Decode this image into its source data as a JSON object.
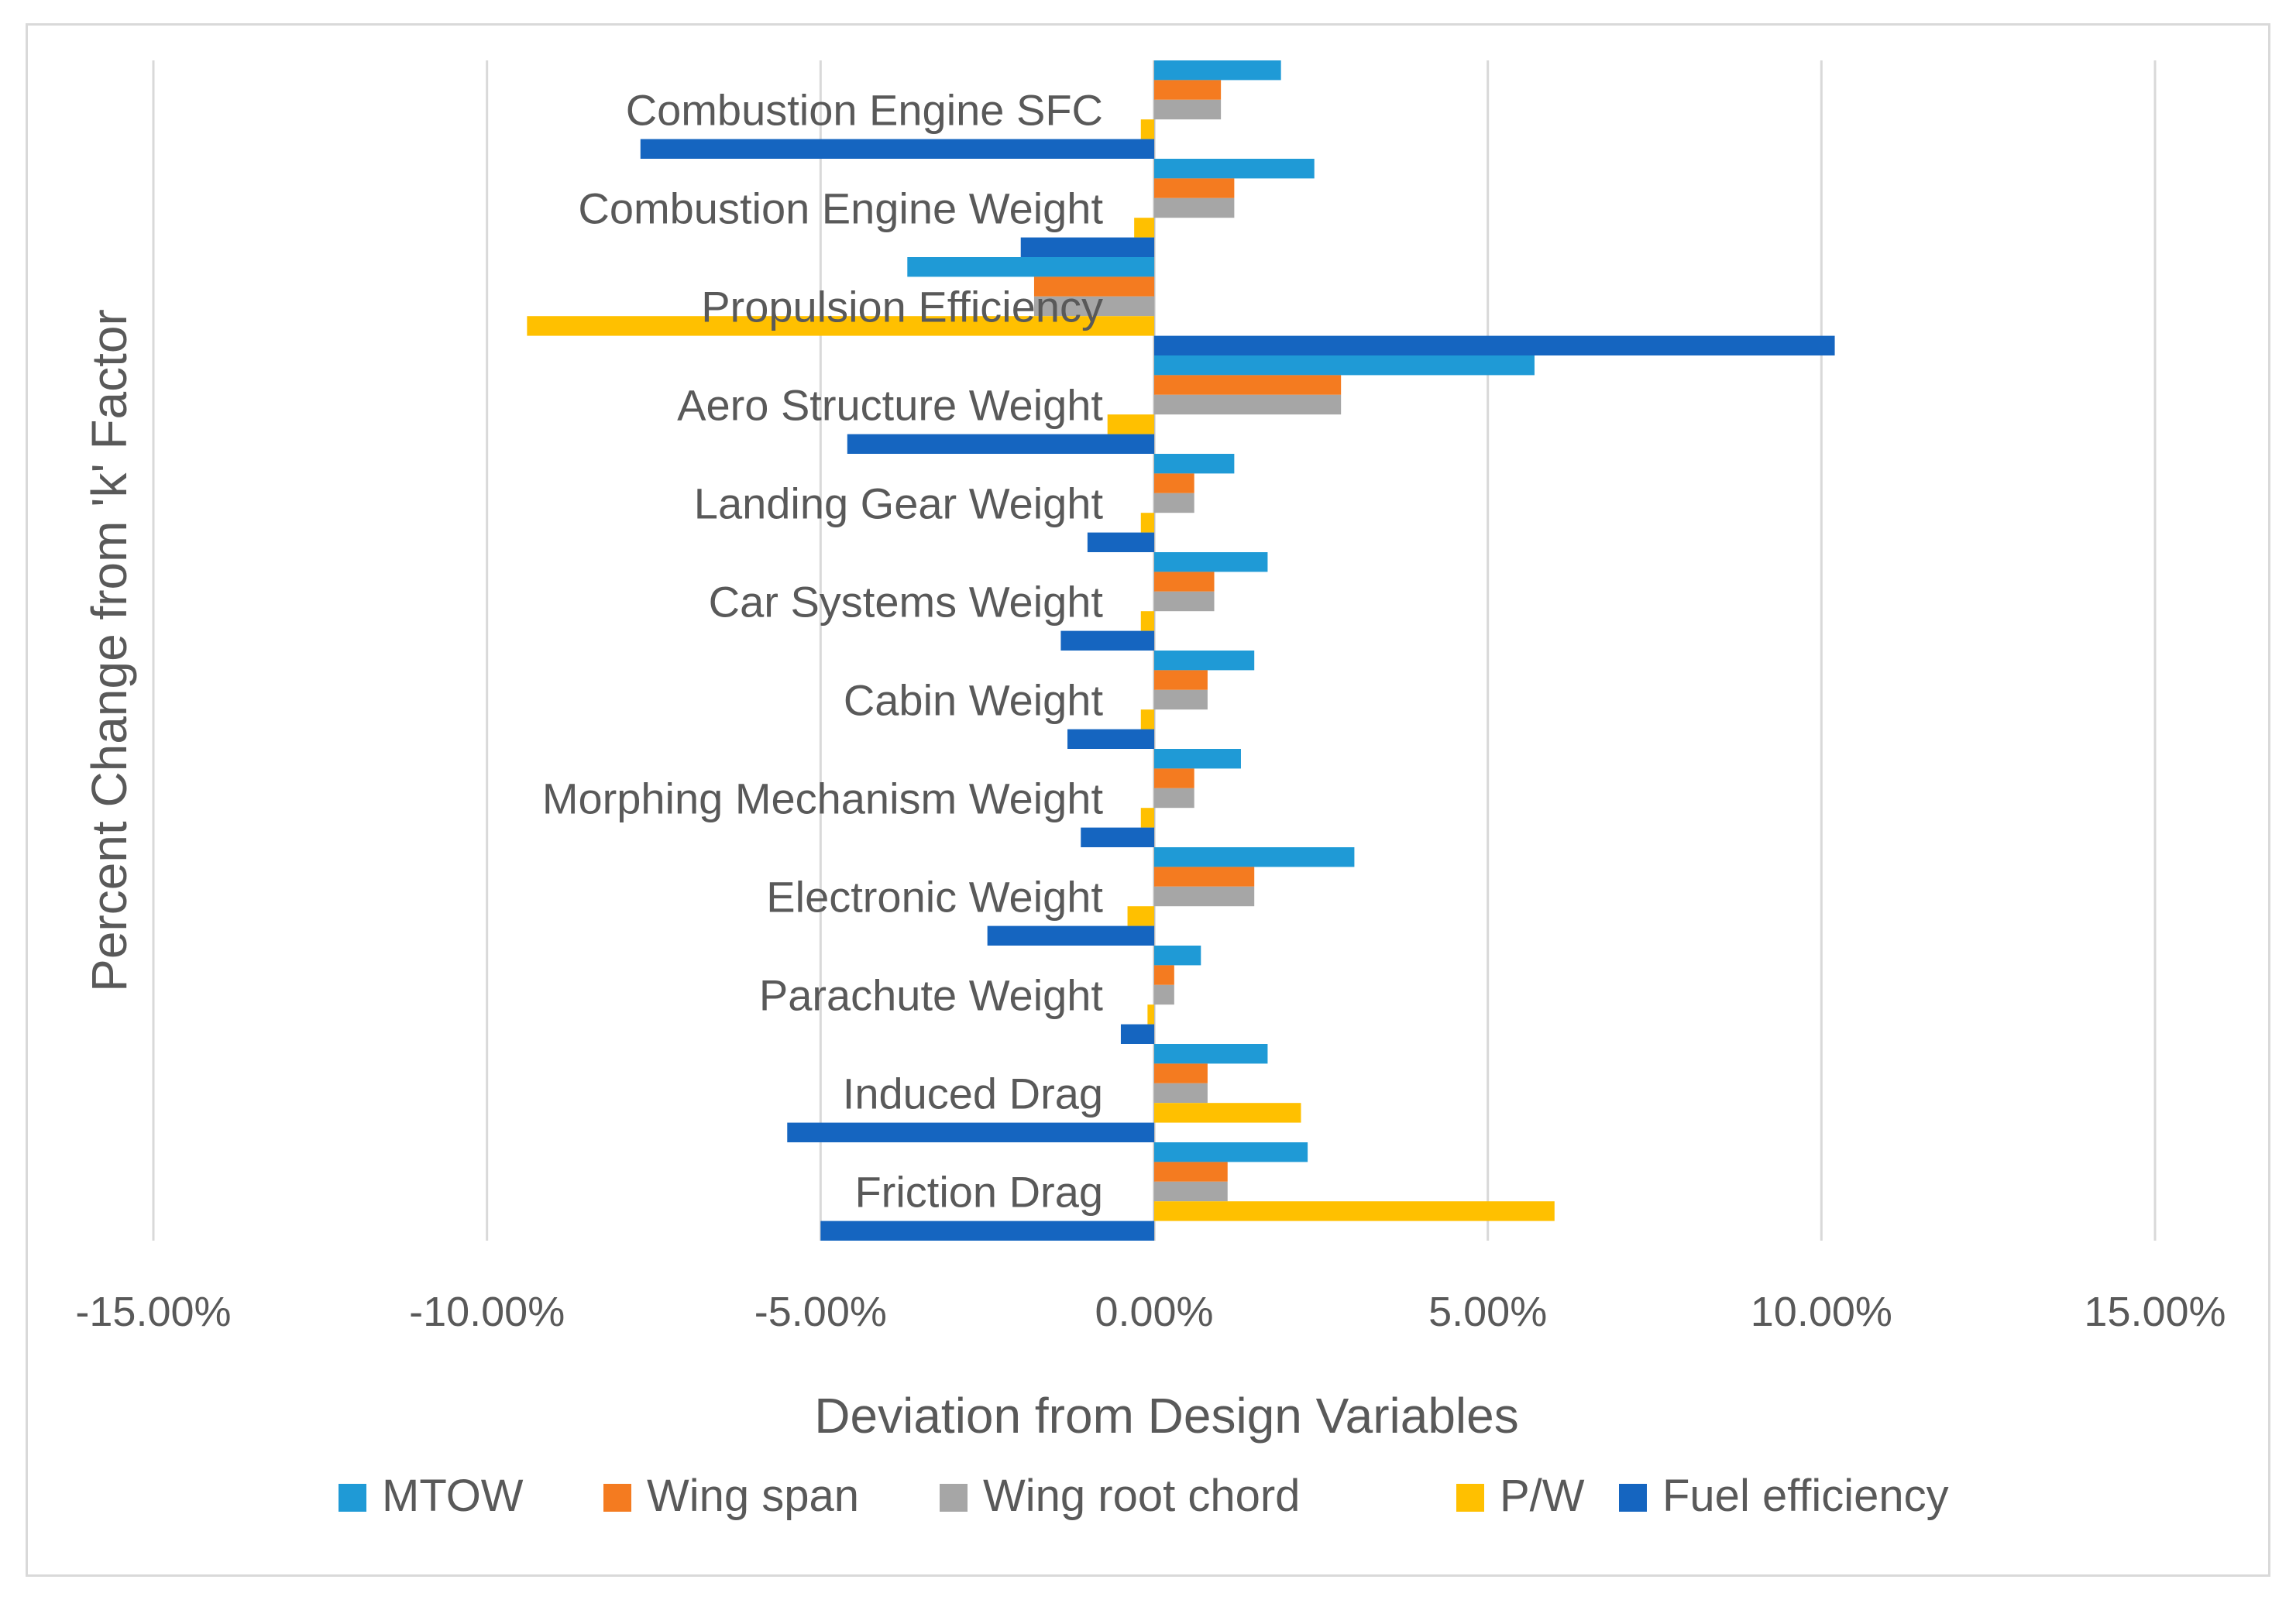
{
  "chart_data": {
    "type": "bar",
    "orientation": "horizontal",
    "xlabel": "Deviation from Design Variables",
    "ylabel": "Percent Change from 'k' Factor",
    "xlim": [
      -15,
      15
    ],
    "xticks": [
      -15,
      -10,
      -5,
      0,
      5,
      10,
      15
    ],
    "xtick_labels": [
      "-15.00%",
      "-10.00%",
      "-5.00%",
      "0.00%",
      "5.00%",
      "10.00%",
      "15.00%"
    ],
    "grid": "vertical",
    "legend_position": "bottom",
    "categories": [
      "Combustion Engine SFC",
      "Combustion Engine Weight",
      "Propulsion Efficiency",
      "Aero Structure Weight",
      "Landing Gear Weight",
      "Car Systems Weight",
      "Cabin Weight",
      "Morphing Mechanism Weight",
      "Electronic Weight",
      "Parachute Weight",
      "Induced Drag",
      "Friction Drag"
    ],
    "series": [
      {
        "name": "MTOW",
        "color": "#1f9ad6",
        "values": [
          1.9,
          2.4,
          -3.7,
          5.7,
          1.2,
          1.7,
          1.5,
          1.3,
          3.0,
          0.7,
          1.7,
          2.3
        ]
      },
      {
        "name": "Wing span",
        "color": "#f47b20",
        "values": [
          1.0,
          1.2,
          -1.8,
          2.8,
          0.6,
          0.9,
          0.8,
          0.6,
          1.5,
          0.3,
          0.8,
          1.1
        ]
      },
      {
        "name": "Wing root chord",
        "color": "#a6a6a6",
        "values": [
          1.0,
          1.2,
          -1.8,
          2.8,
          0.6,
          0.9,
          0.8,
          0.6,
          1.5,
          0.3,
          0.8,
          1.1
        ]
      },
      {
        "name": "P/W",
        "color": "#ffc000",
        "values": [
          -0.2,
          -0.3,
          -9.4,
          -0.7,
          -0.2,
          -0.2,
          -0.2,
          -0.2,
          -0.4,
          -0.1,
          2.2,
          6.0
        ]
      },
      {
        "name": "Fuel efficiency",
        "color": "#1565c0",
        "values": [
          -7.7,
          -2.0,
          10.2,
          -4.6,
          -1.0,
          -1.4,
          -1.3,
          -1.1,
          -2.5,
          -0.5,
          -5.5,
          -5.0
        ]
      }
    ]
  }
}
